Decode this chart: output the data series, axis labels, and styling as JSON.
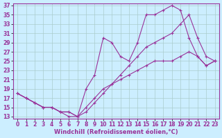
{
  "xlabel": "Windchill (Refroidissement éolien,°C)",
  "line_color": "#993399",
  "marker": "+",
  "bg_color": "#cceeff",
  "grid_color": "#aacccc",
  "line1_x": [
    0,
    1,
    2,
    3,
    4,
    5,
    6,
    7,
    8,
    9,
    10,
    11,
    12,
    13,
    14,
    15,
    16,
    17,
    18,
    19,
    20,
    21,
    22,
    23
  ],
  "line1_y": [
    18,
    17,
    16,
    15,
    15,
    14,
    13,
    13,
    19,
    22,
    30,
    29,
    26,
    25,
    29,
    35,
    35,
    36,
    37,
    36,
    30,
    26,
    24,
    25
  ],
  "line2_x": [
    0,
    1,
    2,
    3,
    4,
    5,
    6,
    7,
    8,
    9,
    10,
    11,
    12,
    13,
    14,
    15,
    16,
    17,
    18,
    19,
    20,
    21,
    22,
    23
  ],
  "line2_y": [
    18,
    17,
    16,
    15,
    15,
    14,
    14,
    13,
    14,
    16,
    18,
    20,
    22,
    24,
    26,
    28,
    29,
    30,
    31,
    33,
    35,
    30,
    26,
    25
  ],
  "line3_x": [
    0,
    1,
    2,
    3,
    4,
    5,
    6,
    7,
    8,
    9,
    10,
    11,
    12,
    13,
    14,
    15,
    16,
    17,
    18,
    19,
    20,
    21,
    22,
    23
  ],
  "line3_y": [
    18,
    17,
    16,
    15,
    15,
    14,
    14,
    13,
    15,
    17,
    19,
    20,
    21,
    22,
    23,
    24,
    25,
    25,
    25,
    26,
    27,
    26,
    24,
    25
  ],
  "xlim": [
    0,
    23
  ],
  "ylim": [
    13,
    37
  ],
  "xticks": [
    0,
    1,
    2,
    3,
    4,
    5,
    6,
    7,
    8,
    9,
    10,
    11,
    12,
    13,
    14,
    15,
    16,
    17,
    18,
    19,
    20,
    21,
    22,
    23
  ],
  "yticks": [
    13,
    15,
    17,
    19,
    21,
    23,
    25,
    27,
    29,
    31,
    33,
    35,
    37
  ],
  "tick_fontsize": 5.5,
  "xlabel_fontsize": 6,
  "marker_size": 3.5,
  "linewidth": 0.8,
  "markeredgewidth": 0.8
}
